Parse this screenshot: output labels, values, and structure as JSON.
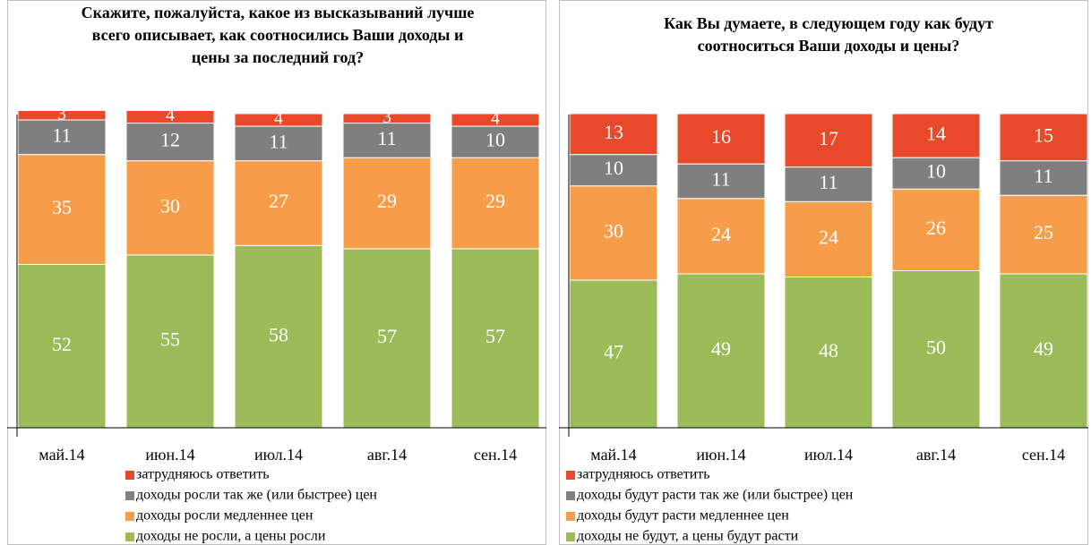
{
  "chart_data": [
    {
      "type": "stacked_bar",
      "title": "Скажите, пожалуйста, какое из высказываний лучше всего описывает, как соотносились Ваши доходы и цены за последний год?",
      "categories": [
        "май.14",
        "июн.14",
        "июл.14",
        "авг.14",
        "сен.14"
      ],
      "series": [
        {
          "name": "затрудняюсь ответить",
          "color": "#e8492a",
          "values": [
            3,
            4,
            4,
            3,
            4
          ]
        },
        {
          "name": "доходы росли так же (или быстрее) цен",
          "color": "#7f7f7f",
          "values": [
            11,
            12,
            11,
            11,
            10
          ]
        },
        {
          "name": "доходы росли медленнее цен",
          "color": "#f79d4a",
          "values": [
            35,
            30,
            27,
            29,
            29
          ]
        },
        {
          "name": "доходы не росли, а цены росли",
          "color": "#9bbb59",
          "values": [
            52,
            55,
            58,
            57,
            57
          ]
        }
      ]
    },
    {
      "type": "stacked_bar",
      "title": "Как Вы думаете, в следующем году как будут соотноситься Ваши доходы и цены?",
      "categories": [
        "май.14",
        "июн.14",
        "июл.14",
        "авг.14",
        "сен.14"
      ],
      "series": [
        {
          "name": "затрудняюсь ответить",
          "color": "#e8492a",
          "values": [
            13,
            16,
            17,
            14,
            15
          ]
        },
        {
          "name": "доходы будут расти так же (или быстрее) цен",
          "color": "#7f7f7f",
          "values": [
            10,
            11,
            11,
            10,
            11
          ]
        },
        {
          "name": "доходы будут расти медленнее цен",
          "color": "#f79d4a",
          "values": [
            30,
            24,
            24,
            26,
            25
          ]
        },
        {
          "name": "доходы не будут, а цены будут расти",
          "color": "#9bbb59",
          "values": [
            47,
            49,
            48,
            50,
            49
          ]
        }
      ]
    }
  ]
}
